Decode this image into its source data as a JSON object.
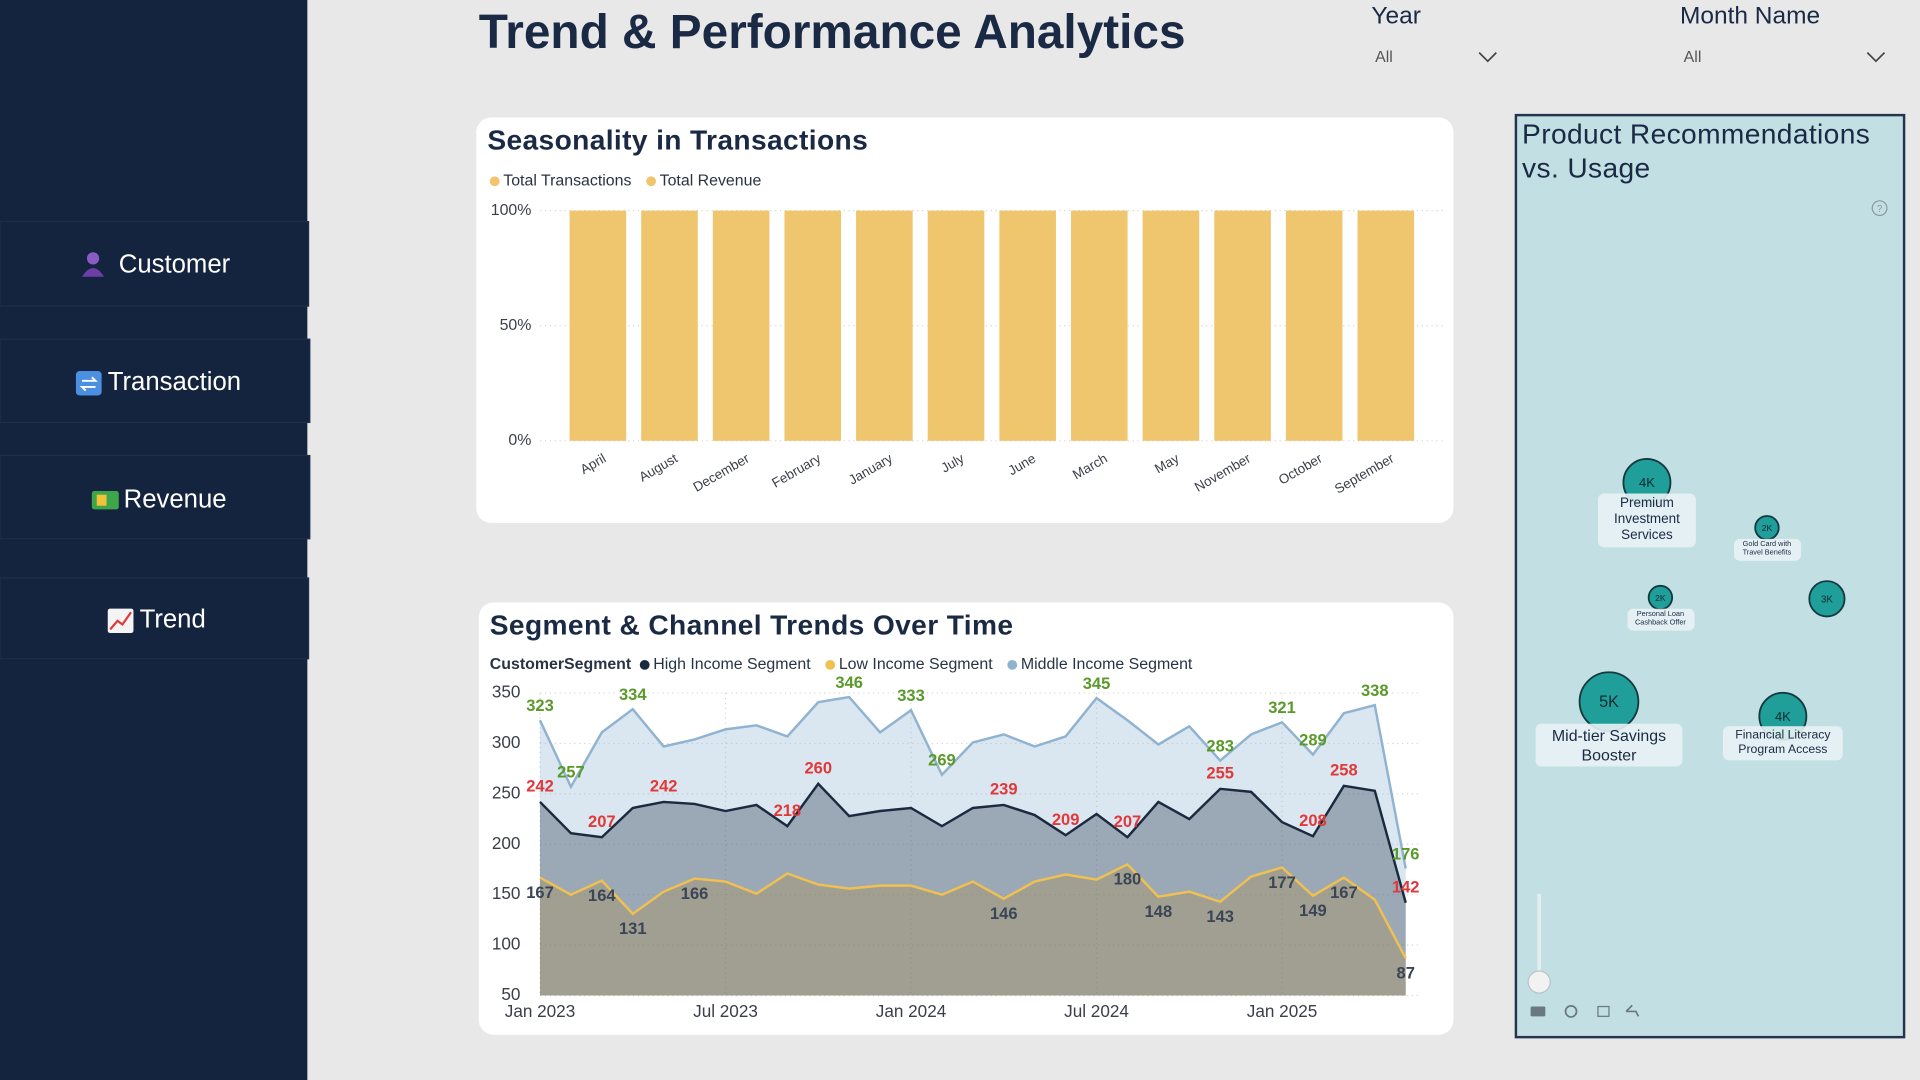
{
  "sidebar": {
    "nav": [
      "Customer",
      "Transaction",
      "Revenue",
      "Trend"
    ]
  },
  "header": {
    "title": "Trend & Performance Analytics"
  },
  "filters": [
    {
      "label": "Year",
      "value": "All"
    },
    {
      "label": "Month Name",
      "value": "All"
    }
  ],
  "chart_data": [
    {
      "type": "bar",
      "stacked": true,
      "title": "Seasonality in Transactions",
      "categories": [
        "April",
        "August",
        "December",
        "February",
        "January",
        "July",
        "June",
        "March",
        "May",
        "November",
        "October",
        "September"
      ],
      "series": [
        {
          "name": "Total Transactions",
          "color": "#f2c46d",
          "values": [
            0,
            0,
            0,
            0,
            0,
            0,
            0,
            0,
            0,
            0,
            0,
            0
          ]
        },
        {
          "name": "Total Revenue",
          "color": "#efc56e",
          "values": [
            100,
            100,
            100,
            100,
            100,
            100,
            100,
            100,
            100,
            100,
            100,
            100
          ]
        }
      ],
      "ylim": [
        0,
        100
      ],
      "yticks": [
        {
          "value": 0,
          "label": "0%"
        },
        {
          "value": 50,
          "label": "50%"
        },
        {
          "value": 100,
          "label": "100%"
        }
      ],
      "grid": true
    },
    {
      "type": "area",
      "title": "Segment & Channel Trends Over Time",
      "legend_title": "CustomerSegment",
      "x": [
        "2023-01",
        "2023-02",
        "2023-03",
        "2023-04",
        "2023-05",
        "2023-06",
        "2023-07",
        "2023-08",
        "2023-09",
        "2023-10",
        "2023-11",
        "2023-12",
        "2024-01",
        "2024-02",
        "2024-03",
        "2024-04",
        "2024-05",
        "2024-06",
        "2024-07",
        "2024-08",
        "2024-09",
        "2024-10",
        "2024-11",
        "2024-12",
        "2025-01",
        "2025-02",
        "2025-03",
        "2025-04",
        "2025-05"
      ],
      "series": [
        {
          "name": "High Income Segment",
          "color": "#1c2a40",
          "label_color": "#e0393a",
          "values": [
            242,
            211,
            207,
            236,
            242,
            240,
            233,
            239,
            218,
            260,
            228,
            233,
            236,
            218,
            236,
            239,
            229,
            209,
            230,
            207,
            242,
            225,
            255,
            252,
            222,
            208,
            258,
            253,
            142
          ],
          "labeled": [
            0,
            2,
            4,
            8,
            9,
            15,
            17,
            19,
            22,
            25,
            26,
            28
          ]
        },
        {
          "name": "Low Income Segment",
          "color": "#f0c050",
          "label_color": "#3a4556",
          "values": [
            167,
            150,
            164,
            131,
            153,
            166,
            163,
            151,
            171,
            160,
            156,
            159,
            159,
            150,
            163,
            146,
            163,
            170,
            165,
            180,
            148,
            153,
            143,
            168,
            177,
            149,
            167,
            145,
            87
          ],
          "labeled": [
            0,
            2,
            3,
            5,
            15,
            19,
            20,
            22,
            24,
            25,
            26,
            28
          ]
        },
        {
          "name": "Middle Income Segment",
          "color": "#8fb3d0",
          "label_color": "#5a9a2a",
          "values": [
            323,
            257,
            311,
            334,
            297,
            304,
            314,
            318,
            307,
            341,
            346,
            311,
            333,
            269,
            301,
            309,
            297,
            307,
            345,
            323,
            299,
            317,
            283,
            309,
            321,
            289,
            330,
            338,
            176
          ],
          "labeled": [
            0,
            1,
            3,
            10,
            12,
            13,
            18,
            22,
            24,
            25,
            27,
            28
          ]
        }
      ],
      "ylim": [
        50,
        350
      ],
      "yticks": [
        50,
        100,
        150,
        200,
        250,
        300,
        350
      ],
      "xticks": [
        {
          "value": "2023-01",
          "label": "Jan 2023"
        },
        {
          "value": "2023-07",
          "label": "Jul 2023"
        },
        {
          "value": "2024-01",
          "label": "Jan 2024"
        },
        {
          "value": "2024-07",
          "label": "Jul 2024"
        },
        {
          "value": "2025-01",
          "label": "Jan 2025"
        }
      ],
      "grid": true
    },
    {
      "type": "bubble",
      "title": "Product Recommendations vs. Usage",
      "categories": [
        "Premium Investment Services",
        "Gold Card with Travel Benefits",
        null,
        "Personal Loan Cashback Offer",
        "Mid-tier Savings Booster",
        "Financial Literacy Program Access"
      ],
      "values": [
        4000,
        2000,
        3000,
        2000,
        5000,
        4000
      ],
      "value_labels": [
        "4K",
        "2K",
        "3K",
        "2K",
        "5K",
        "4K"
      ],
      "color": "#1f9e9a"
    }
  ]
}
